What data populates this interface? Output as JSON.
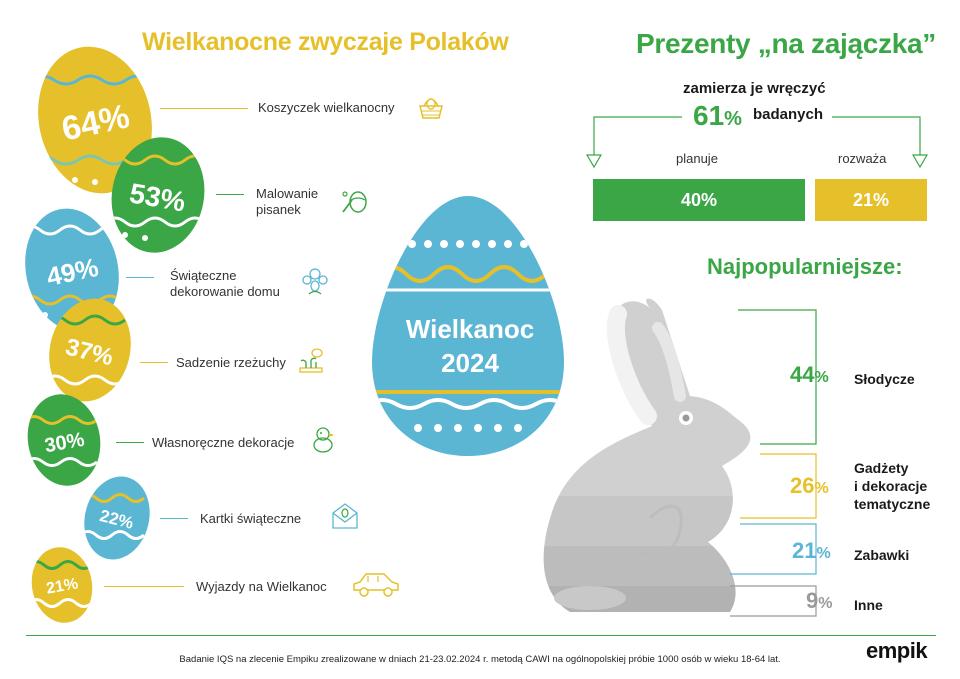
{
  "left_title": "Wielkanocne zwyczaje Polaków",
  "right_title": "Prezenty „na zajączka”",
  "customs": [
    {
      "percent": "64%",
      "label": "Koszyczek wielkanocny",
      "icon": "basket-icon",
      "color": "#e6c02a"
    },
    {
      "percent": "53%",
      "label": "Malowanie pisanek",
      "icon": "painting-eggs-icon",
      "color": "#3aa646"
    },
    {
      "percent": "49%",
      "label": "Świąteczne dekorowanie domu",
      "icon": "home-decoration-icon",
      "color": "#5bb6d4"
    },
    {
      "percent": "37%",
      "label": "Sadzenie rzeżuchy",
      "icon": "cress-planting-icon",
      "color": "#e6c02a"
    },
    {
      "percent": "30%",
      "label": "Własnoręczne dekoracje",
      "icon": "handmade-chick-icon",
      "color": "#3aa646"
    },
    {
      "percent": "22%",
      "label": "Kartki świąteczne",
      "icon": "greeting-card-icon",
      "color": "#5bb6d4"
    },
    {
      "percent": "21%",
      "label": "Wyjazdy na Wielkanoc",
      "icon": "car-icon",
      "color": "#e6c02a"
    }
  ],
  "custom_label_lines": {
    "painting": [
      "Malowanie",
      "pisanek"
    ],
    "decorating": [
      "Świąteczne",
      "dekorowanie domu"
    ]
  },
  "central_egg": {
    "line1": "Wielkanoc",
    "line2": "2024",
    "color": "#5bb6d4"
  },
  "gifts": {
    "intend_text": "zamierza je wręczyć",
    "total_value": "61",
    "total_unit": "%",
    "respondents_text": "badanych",
    "plan_label": "planuje",
    "plan_value": "40%",
    "plan_fraction": 0.4,
    "consider_label": "rozważa",
    "consider_value": "21%",
    "consider_fraction": 0.21,
    "plan_color": "#3aa646",
    "consider_color": "#e6c02a"
  },
  "popular": {
    "title": "Najpopularniejsze:",
    "items": [
      {
        "value": "44",
        "unit": "%",
        "label_lines": [
          "Słodycze"
        ],
        "color": "#3aa646"
      },
      {
        "value": "26",
        "unit": "%",
        "label_lines": [
          "Gadżety",
          "i dekoracje",
          "tematyczne"
        ],
        "color": "#e6c02a"
      },
      {
        "value": "21",
        "unit": "%",
        "label_lines": [
          "Zabawki"
        ],
        "color": "#5bb6d4"
      },
      {
        "value": "9",
        "unit": "%",
        "label_lines": [
          "Inne"
        ],
        "color": "#9a9a9a"
      }
    ]
  },
  "footer": "Badanie IQS na zlecenie Empiku zrealizowane w dniach 21-23.02.2024 r. metodą CAWI na ogólnopolskiej próbie 1000 osób w wieku 18-64 lat.",
  "logo": "empik"
}
